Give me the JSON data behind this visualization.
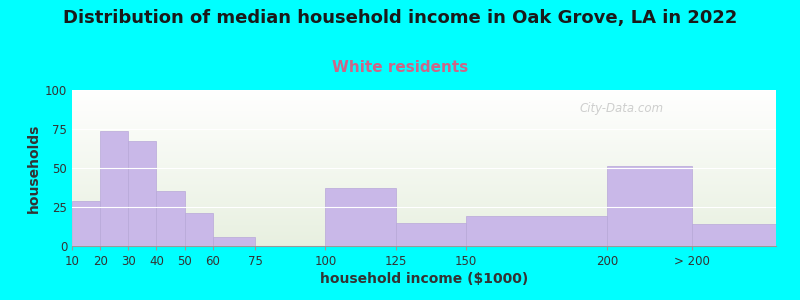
{
  "title": "Distribution of median household income in Oak Grove, LA in 2022",
  "subtitle": "White residents",
  "xlabel": "household income ($1000)",
  "ylabel": "households",
  "background_color": "#00FFFF",
  "bar_color": "#C9B8E8",
  "bar_edge_color": "#B8A8D8",
  "plot_bg_top": "#FFFFFF",
  "plot_bg_bottom": "#E8F0E0",
  "categories": [
    "10",
    "20",
    "30",
    "40",
    "50",
    "60",
    "75",
    "100",
    "125",
    "150",
    "200",
    "> 200"
  ],
  "bin_edges": [
    10,
    20,
    30,
    40,
    50,
    60,
    75,
    100,
    125,
    150,
    200,
    230,
    260
  ],
  "values": [
    29,
    74,
    67,
    35,
    21,
    6,
    0,
    37,
    15,
    19,
    51,
    14
  ],
  "ylim": [
    0,
    100
  ],
  "yticks": [
    0,
    25,
    50,
    75,
    100
  ],
  "title_fontsize": 13,
  "subtitle_fontsize": 11,
  "subtitle_color": "#CC6688",
  "axis_label_fontsize": 10,
  "tick_fontsize": 8.5,
  "watermark": "City-Data.com"
}
